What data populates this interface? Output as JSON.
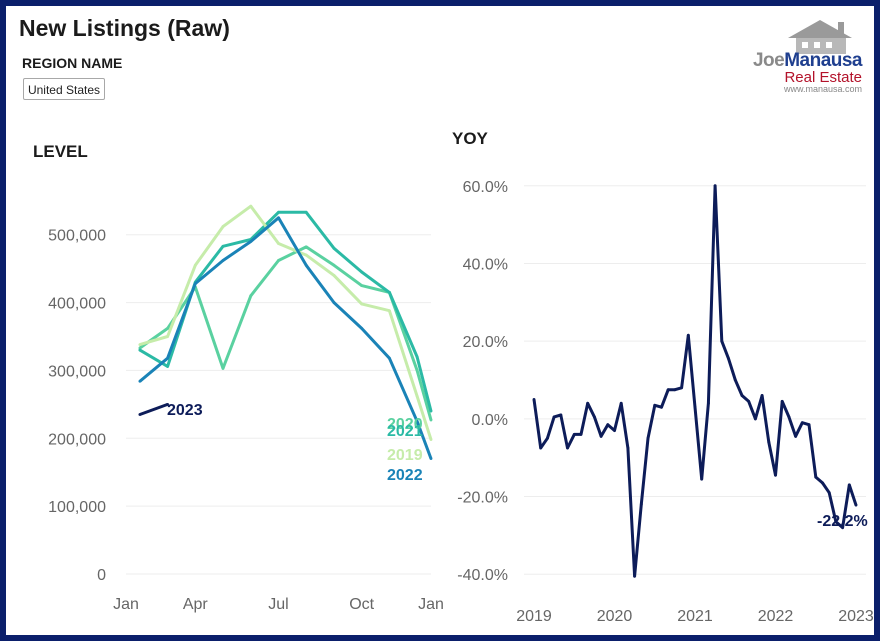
{
  "header": {
    "title": "New Listings (Raw)",
    "region_label": "REGION NAME",
    "region_value": "United States"
  },
  "logo": {
    "name_part1": "Joe",
    "name_part2": "Manausa",
    "subtitle": "Real Estate",
    "url": "www.manausa.com"
  },
  "colors": {
    "frame": "#0b1f6b",
    "s2019": "#c6ecaa",
    "s2020": "#5ad1a0",
    "s2021": "#2bbaa5",
    "s2022": "#1a83b7",
    "s2023": "#0d1c59"
  },
  "chart_data": [
    {
      "type": "line",
      "title": "LEVEL",
      "x_tick_labels": [
        "Jan",
        "Apr",
        "Jul",
        "Oct",
        "Jan"
      ],
      "x_tick_months": [
        1,
        3.5,
        6.5,
        9.5,
        12
      ],
      "y_tick_labels": [
        "0",
        "100,000",
        "200,000",
        "300,000",
        "400,000",
        "500,000"
      ],
      "ylim": [
        0,
        560000
      ],
      "xlim": [
        1,
        12
      ],
      "series": [
        {
          "name": "2019",
          "color_key": "s2019",
          "x": [
            1.5,
            2.5,
            3.5,
            4.5,
            5.5,
            6.5,
            7.5,
            8.5,
            9.5,
            10.5,
            11.5,
            12
          ],
          "values": [
            338000,
            350000,
            455000,
            512000,
            542000,
            487000,
            470000,
            440000,
            398000,
            388000,
            262000,
            198000
          ]
        },
        {
          "name": "2020",
          "color_key": "s2020",
          "x": [
            1.5,
            2.5,
            3.5,
            4.5,
            5.5,
            6.5,
            7.5,
            8.5,
            9.5,
            10.5,
            11.5,
            12
          ],
          "values": [
            333000,
            362000,
            423000,
            303000,
            410000,
            462000,
            482000,
            455000,
            425000,
            415000,
            300000,
            227000
          ]
        },
        {
          "name": "2021",
          "color_key": "s2021",
          "x": [
            1.5,
            2.5,
            3.5,
            4.5,
            5.5,
            6.5,
            7.5,
            8.5,
            9.5,
            10.5,
            11.5,
            12
          ],
          "values": [
            330000,
            306000,
            430000,
            483000,
            493000,
            533000,
            533000,
            480000,
            445000,
            415000,
            320000,
            240000
          ]
        },
        {
          "name": "2022",
          "color_key": "s2022",
          "x": [
            1.5,
            2.5,
            3.5,
            4.5,
            5.5,
            6.5,
            7.5,
            8.5,
            9.5,
            10.5,
            11.5,
            12
          ],
          "values": [
            284000,
            318000,
            428000,
            462000,
            490000,
            525000,
            455000,
            400000,
            362000,
            318000,
            225000,
            170000
          ]
        },
        {
          "name": "2023",
          "color_key": "s2023",
          "x": [
            1.5,
            2.5
          ],
          "values": [
            235000,
            250000
          ]
        }
      ]
    },
    {
      "type": "line",
      "title": "YOY",
      "x_tick_labels": [
        "2019",
        "2020",
        "2021",
        "2022",
        "2023"
      ],
      "y_tick_labels": [
        "-40.0%",
        "-20.0%",
        "0.0%",
        "20.0%",
        "40.0%",
        "60.0%"
      ],
      "ylim": [
        -42,
        62
      ],
      "end_label": "-22.2%",
      "series": [
        {
          "name": "YoY change (%)",
          "color_key": "s2023",
          "values": [
            5,
            -7.5,
            -5,
            0.5,
            1,
            -7.5,
            -4,
            -4,
            4,
            0.5,
            -4.5,
            -1.5,
            -3,
            4,
            -7.5,
            -40.5,
            -22,
            -5,
            3.5,
            3,
            7.5,
            7.5,
            8,
            21.5,
            3,
            -15.5,
            4,
            60,
            20,
            15.5,
            10,
            6,
            4.5,
            0,
            6,
            -6,
            -14.5,
            4.5,
            0.5,
            -4.5,
            -1,
            -1.5,
            -15,
            -16.5,
            -19,
            -26.5,
            -28,
            -17,
            -22.2
          ]
        }
      ]
    }
  ]
}
